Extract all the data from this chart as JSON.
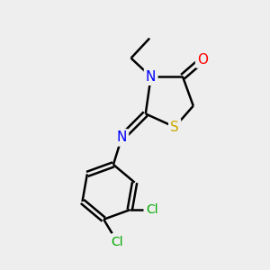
{
  "bg_color": "#eeeeee",
  "bond_color": "#000000",
  "bond_width": 1.8,
  "atom_colors": {
    "N": "#0000ff",
    "O": "#ff0000",
    "S": "#ccaa00",
    "Cl": "#00aa00",
    "C": "#000000"
  },
  "font_size": 11,
  "figsize": [
    3.0,
    3.0
  ],
  "dpi": 100
}
